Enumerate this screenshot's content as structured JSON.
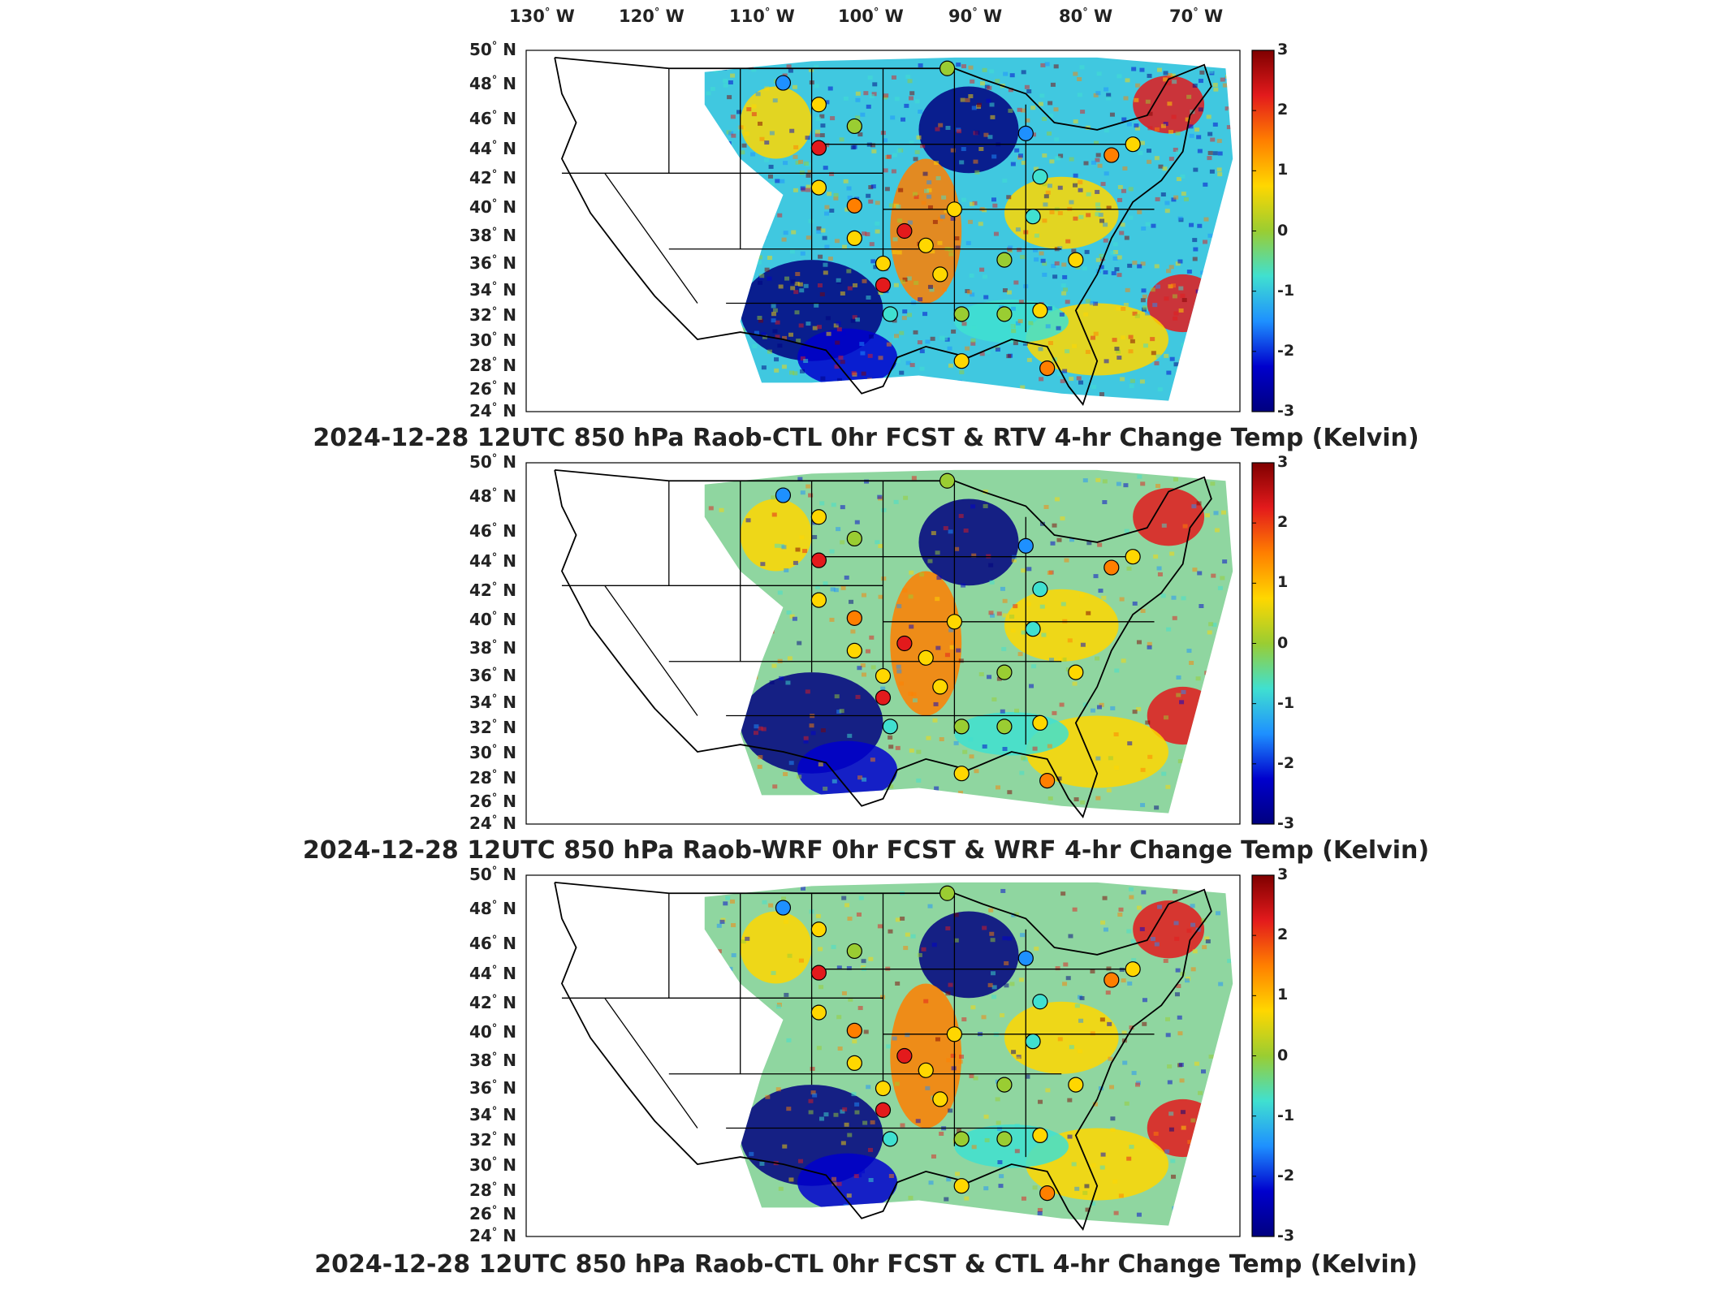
{
  "longitude_labels": [
    {
      "deg": "130",
      "hem": "W"
    },
    {
      "deg": "120",
      "hem": "W"
    },
    {
      "deg": "110",
      "hem": "W"
    },
    {
      "deg": "100",
      "hem": "W"
    },
    {
      "deg": "90",
      "hem": "W"
    },
    {
      "deg": "80",
      "hem": "W"
    },
    {
      "deg": "70",
      "hem": "W"
    }
  ],
  "latitude_labels": [
    {
      "deg": "50",
      "hem": "N"
    },
    {
      "deg": "48",
      "hem": "N"
    },
    {
      "deg": "46",
      "hem": "N"
    },
    {
      "deg": "44",
      "hem": "N"
    },
    {
      "deg": "42",
      "hem": "N"
    },
    {
      "deg": "40",
      "hem": "N"
    },
    {
      "deg": "38",
      "hem": "N"
    },
    {
      "deg": "36",
      "hem": "N"
    },
    {
      "deg": "34",
      "hem": "N"
    },
    {
      "deg": "32",
      "hem": "N"
    },
    {
      "deg": "30",
      "hem": "N"
    },
    {
      "deg": "28",
      "hem": "N"
    },
    {
      "deg": "26",
      "hem": "N"
    },
    {
      "deg": "24",
      "hem": "N"
    }
  ],
  "colorbar": {
    "ticks": [
      "3",
      "2",
      "1",
      "0",
      "-1",
      "-2",
      "-3"
    ],
    "colors": [
      "#7f0000",
      "#e31a1c",
      "#ff7f00",
      "#ffd700",
      "#9acd32",
      "#40e0d0",
      "#1e90ff",
      "#0000cd",
      "#00007f"
    ]
  },
  "panels": [
    {
      "id": "rtv",
      "title": "2024-12-28 12UTC 850 hPa Raob-CTL 0hr FCST & RTV 4-hr Change Temp (Kelvin)"
    },
    {
      "id": "wrf",
      "title": "2024-12-28 12UTC 850 hPa Raob-WRF 0hr FCST & WRF 4-hr Change Temp (Kelvin)"
    },
    {
      "id": "ctl",
      "title": "2024-12-28 12UTC 850 hPa Raob-CTL 0hr FCST & CTL 4-hr Change Temp (Kelvin)"
    }
  ],
  "colors": {
    "background": "#ffffff",
    "frame": "#000000",
    "land_outline": "#000000"
  }
}
